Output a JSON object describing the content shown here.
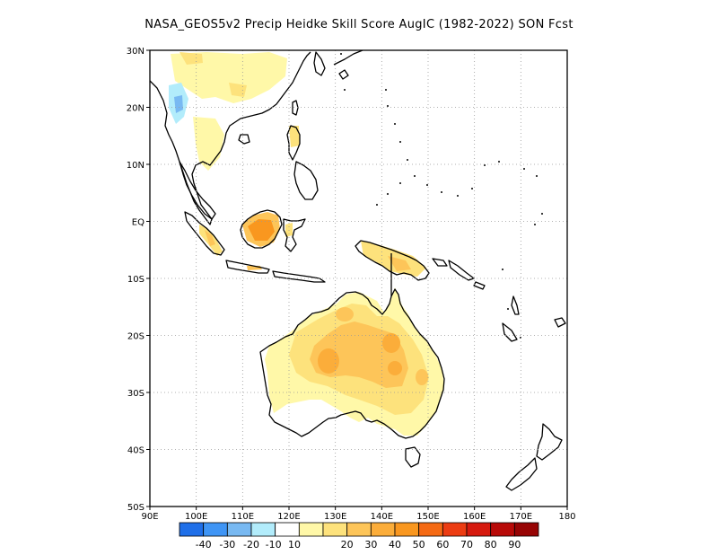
{
  "title": "NASA_GEOS5v2 Precip Heidke Skill Score AugIC (1982-2022) SON Fcst",
  "map": {
    "lon_range": [
      90,
      180
    ],
    "lat_range": [
      -50,
      30
    ],
    "lon_ticks": [
      {
        "value": 90,
        "label": "90E"
      },
      {
        "value": 100,
        "label": "100E"
      },
      {
        "value": 110,
        "label": "110E"
      },
      {
        "value": 120,
        "label": "120E"
      },
      {
        "value": 130,
        "label": "130E"
      },
      {
        "value": 140,
        "label": "140E"
      },
      {
        "value": 150,
        "label": "150E"
      },
      {
        "value": 160,
        "label": "160E"
      },
      {
        "value": 170,
        "label": "170E"
      },
      {
        "value": 180,
        "label": "180"
      }
    ],
    "lat_ticks": [
      {
        "value": 30,
        "label": "30N"
      },
      {
        "value": 20,
        "label": "20N"
      },
      {
        "value": 10,
        "label": "10N"
      },
      {
        "value": 0,
        "label": "EQ"
      },
      {
        "value": -10,
        "label": "10S"
      },
      {
        "value": -20,
        "label": "20S"
      },
      {
        "value": -30,
        "label": "30S"
      },
      {
        "value": -40,
        "label": "40S"
      },
      {
        "value": -50,
        "label": "50S"
      }
    ],
    "grid": "dotted"
  },
  "colorbar": {
    "colors": [
      "#1f6fe8",
      "#3f95f5",
      "#78b9f2",
      "#b2ecfb",
      "#ffffff",
      "#fff8a8",
      "#fde27c",
      "#fdc559",
      "#fbad3a",
      "#f9971f",
      "#f56a14",
      "#ec3c12",
      "#d61a0e",
      "#b80a08",
      "#970404"
    ],
    "labels": [
      "-40",
      "-30",
      "-20",
      "-10",
      "10",
      "20",
      "30",
      "40",
      "50",
      "60",
      "70",
      "80",
      "90"
    ]
  },
  "chart_data": {
    "type": "heatmap",
    "variable": "Precip Heidke Skill Score",
    "regions": [
      {
        "region": "Australia interior",
        "score_range": [
          10,
          40
        ]
      },
      {
        "region": "Central-west Australia",
        "score_range": [
          40,
          50
        ]
      },
      {
        "region": "Northeast Australia",
        "score_range": [
          30,
          50
        ]
      },
      {
        "region": "Borneo (south)",
        "score_range": [
          50,
          60
        ]
      },
      {
        "region": "Sumatra (south)",
        "score_range": [
          20,
          40
        ]
      },
      {
        "region": "New Guinea",
        "score_range": [
          20,
          40
        ]
      },
      {
        "region": "Southern China",
        "score_range": [
          10,
          30
        ]
      },
      {
        "region": "Indochina west",
        "score_range": [
          -20,
          -10
        ]
      },
      {
        "region": "Philippines (Luzon)",
        "score_range": [
          10,
          20
        ]
      }
    ]
  }
}
